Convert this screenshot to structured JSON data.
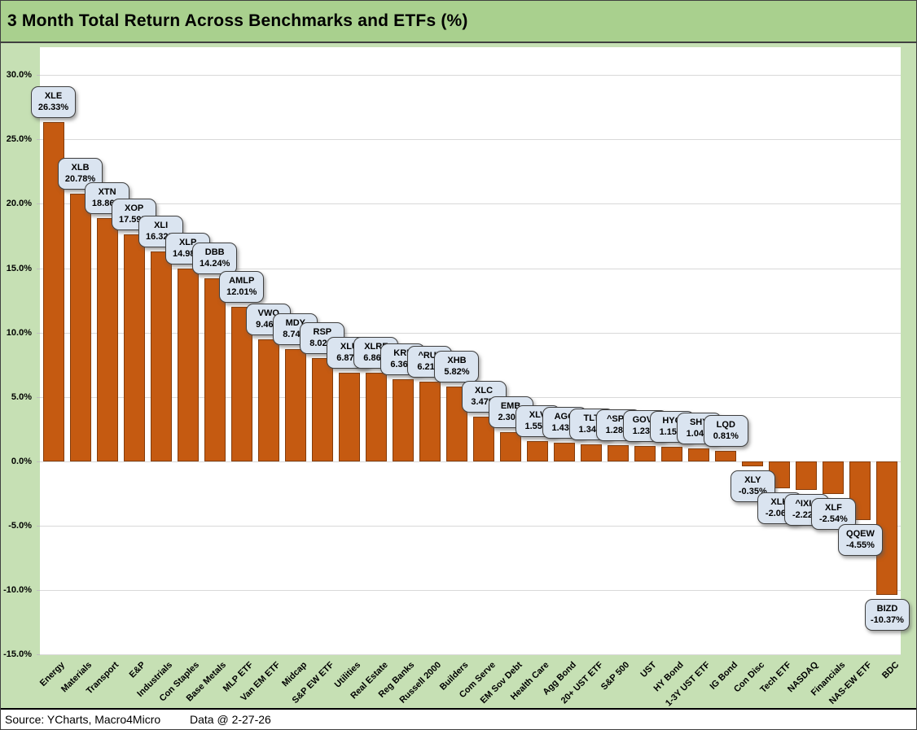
{
  "title": "3 Month Total Return Across Benchmarks and ETFs (%)",
  "footer": {
    "source": "Source: YCharts, Macro4Micro",
    "data_date": "Data @ 2-27-26"
  },
  "colors": {
    "title_band_bg": "#A9D08E",
    "chart_bg": "#C6E0B4",
    "plot_bg": "#FFFFFF",
    "gridline": "#D9D9D9",
    "bar_fill": "#C55A11",
    "bar_border": "#843C0B",
    "callout_bg": "#DAE4F0",
    "callout_border": "#3F3F3F",
    "text": "#000000"
  },
  "chart_data": {
    "type": "bar",
    "title": "3 Month Total Return Across Benchmarks and ETFs (%)",
    "xlabel": "",
    "ylabel": "",
    "ylim": [
      -15,
      30
    ],
    "ytick_step": 5,
    "ytick_labels": [
      "30.0%",
      "25.0%",
      "20.0%",
      "15.0%",
      "10.0%",
      "5.0%",
      "0.0%",
      "-5.0%",
      "-10.0%",
      "-15.0%"
    ],
    "grid": true,
    "legend_position": "none",
    "data_label_style": "callout-ticker-and-percent",
    "categories": [
      "Energy",
      "Materials",
      "Transport",
      "E&P",
      "Industrials",
      "Con Staples",
      "Base Metals",
      "MLP ETF",
      "Van EM ETF",
      "Midcap",
      "S&P EW ETF",
      "Utilities",
      "Real Estate",
      "Reg Banks",
      "Russell 2000",
      "Builders",
      "Com Serve",
      "EM Sov Debt",
      "Health Care",
      "Agg Bond",
      "20+ UST ETF",
      "S&P 500",
      "UST",
      "HY Bond",
      "1-3Y UST ETF",
      "IG Bond",
      "Con Disc",
      "Tech ETF",
      "NASDAQ",
      "Financials",
      "NAS-EW ETF",
      "BDC"
    ],
    "tickers": [
      "XLE",
      "XLB",
      "XTN",
      "XOP",
      "XLI",
      "XLP",
      "DBB",
      "AMLP",
      "VWO",
      "MDY",
      "RSP",
      "XLU",
      "XLRE",
      "KRE",
      "^RUT",
      "XHB",
      "XLC",
      "EMB",
      "XLV",
      "AGG",
      "TLT",
      "^SPX",
      "GOVT",
      "HYG",
      "SHY",
      "LQD",
      "XLY",
      "XLK",
      "^IXIC",
      "XLF",
      "QQEW",
      "BIZD"
    ],
    "values": [
      26.33,
      20.78,
      18.86,
      17.59,
      16.32,
      14.98,
      14.24,
      12.01,
      9.46,
      8.74,
      8.02,
      6.87,
      6.86,
      6.36,
      6.21,
      5.82,
      3.47,
      2.3,
      1.55,
      1.43,
      1.34,
      1.28,
      1.23,
      1.15,
      1.04,
      0.81,
      -0.35,
      -2.06,
      -2.22,
      -2.54,
      -4.55,
      -10.37
    ]
  }
}
